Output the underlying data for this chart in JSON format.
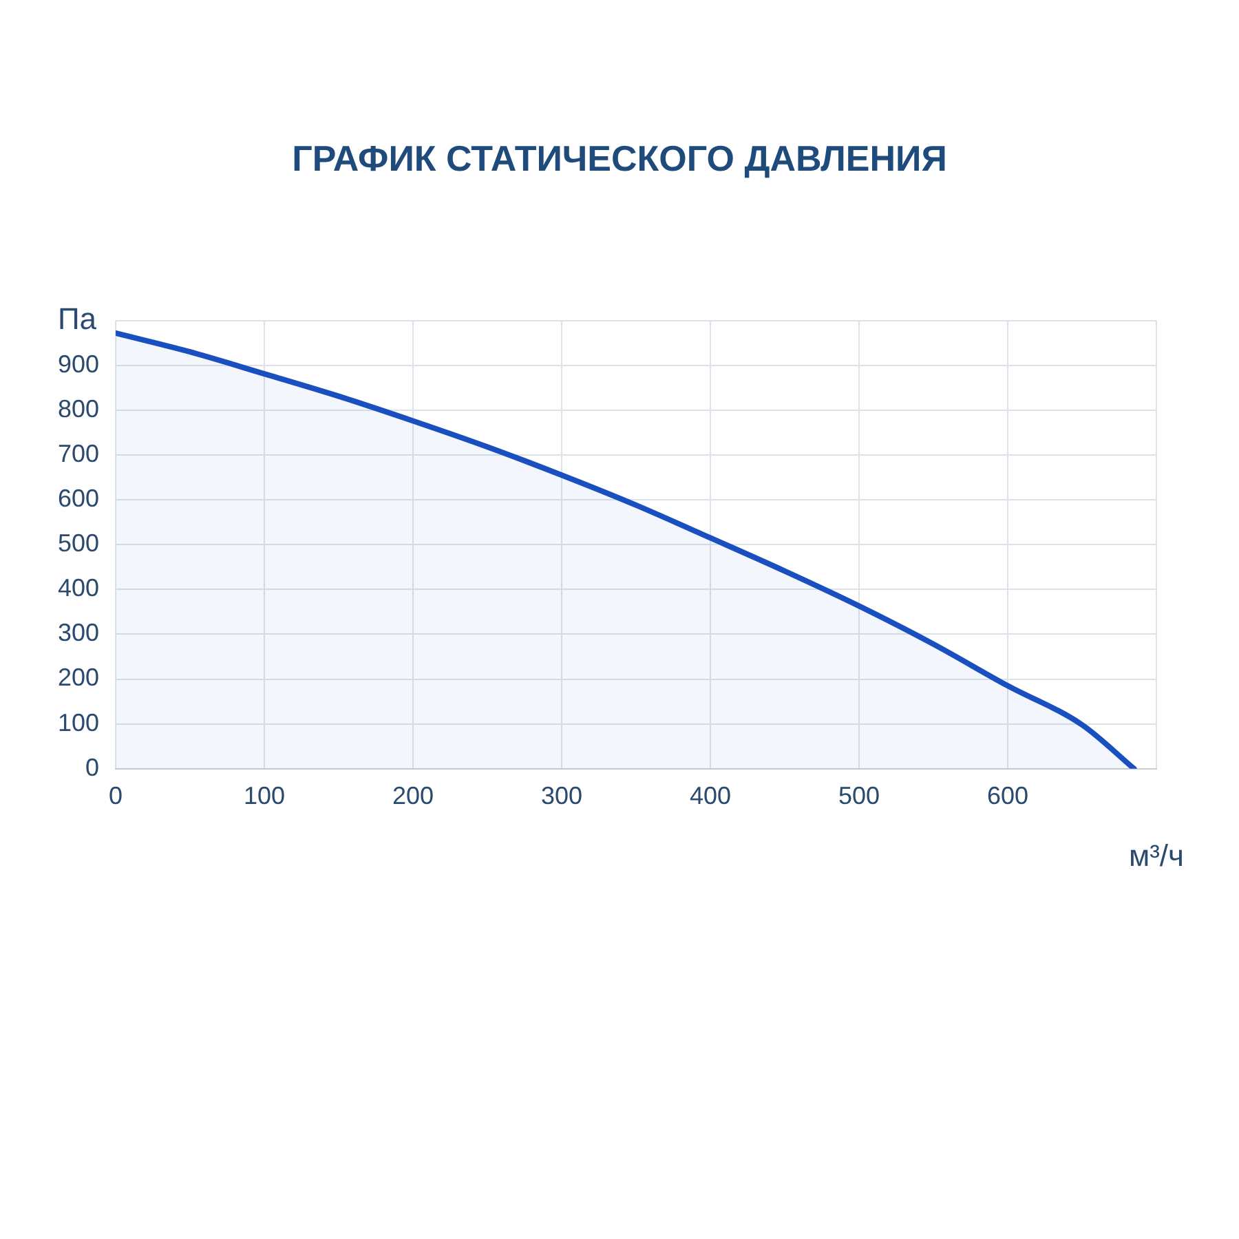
{
  "chart_data": {
    "type": "area",
    "title": "ГРАФИК СТАТИЧЕСКОГО ДАВЛЕНИЯ",
    "xlabel": "м³/ч",
    "ylabel": "Па",
    "x": [
      0,
      50,
      100,
      150,
      200,
      250,
      300,
      350,
      400,
      450,
      500,
      550,
      600,
      650,
      685
    ],
    "series": [
      {
        "color": "#1a4fbf",
        "values": [
          972,
          930,
          881,
          831,
          776,
          718,
          655,
          588,
          515,
          441,
          363,
          278,
          185,
          98,
          0
        ]
      }
    ],
    "xlim": [
      0,
      700
    ],
    "xticks": [
      0,
      100,
      200,
      300,
      400,
      500,
      600,
      {
        "value": 700,
        "label": null
      }
    ],
    "ylim": [
      0,
      1000
    ],
    "yticks": [
      0,
      100,
      200,
      300,
      400,
      500,
      600,
      700,
      800,
      900,
      {
        "value": 1000,
        "label": null
      }
    ],
    "grid": true,
    "marker": "none",
    "line_style": "solid",
    "legend": false
  }
}
